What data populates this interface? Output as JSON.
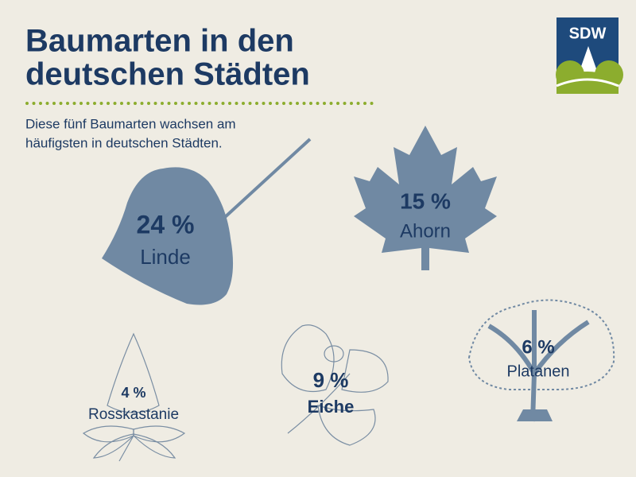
{
  "header": {
    "title_lines": [
      "Baumarten in den",
      "deutschen Städten"
    ],
    "subtitle_lines": [
      "Diese fünf Baumarten wachsen am",
      "häufigsten in deutschen Städten."
    ]
  },
  "logo": {
    "text": "SDW"
  },
  "trees": [
    {
      "percent": "24 %",
      "name": "Linde"
    },
    {
      "percent": "15 %",
      "name": "Ahorn"
    },
    {
      "percent": "4 %",
      "name": "Rosskastanie"
    },
    {
      "percent": "9 %",
      "name": "Eiche"
    },
    {
      "percent": "6 %",
      "name": "Platanen"
    }
  ]
}
